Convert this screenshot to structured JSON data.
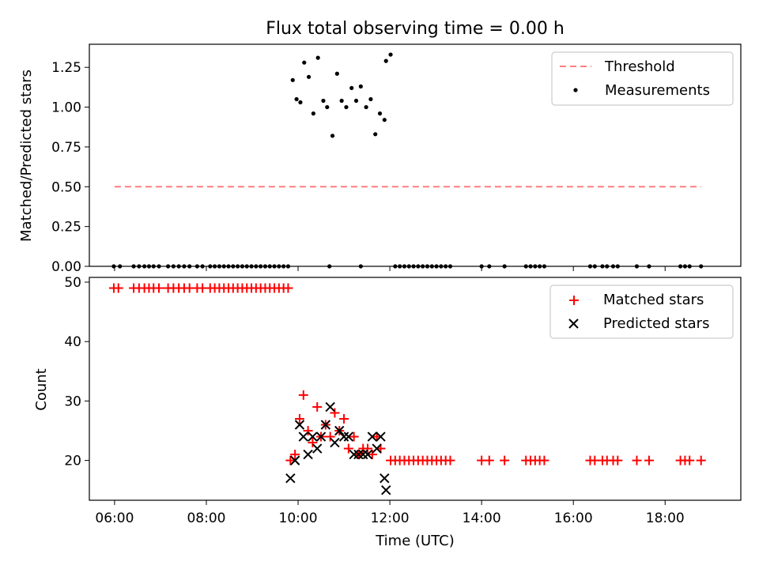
{
  "title": "Flux total observing time = 0.00 h",
  "chart_data": [
    {
      "type": "scatter",
      "ylabel": "Matched/Predicted stars",
      "xlim_hours": [
        5.45,
        19.65
      ],
      "ylim": [
        0,
        1.395
      ],
      "yticks": [
        0,
        0.25,
        0.5,
        0.75,
        1.0,
        1.25
      ],
      "ytick_labels": [
        "0.00",
        "0.25",
        "0.50",
        "0.75",
        "1.00",
        "1.25"
      ],
      "legend": "top-right",
      "series": [
        {
          "name": "Threshold",
          "kind": "dashed-line",
          "color": "#ff7f7f",
          "x": [
            "06:00",
            "18:47"
          ],
          "y": [
            0.5,
            0.5
          ]
        },
        {
          "name": "Measurements",
          "kind": "dots",
          "color": "#000000",
          "x": [
            "05:59",
            "06:07",
            "06:25",
            "06:32",
            "06:39",
            "06:45",
            "06:51",
            "06:58",
            "07:10",
            "07:17",
            "07:24",
            "07:31",
            "07:38",
            "07:48",
            "07:55",
            "08:05",
            "08:11",
            "08:17",
            "08:23",
            "08:29",
            "08:35",
            "08:41",
            "08:47",
            "08:53",
            "08:59",
            "09:05",
            "09:11",
            "09:17",
            "09:23",
            "09:29",
            "09:35",
            "09:41",
            "09:47",
            "09:53",
            "09:58",
            "10:03",
            "10:08",
            "10:14",
            "10:20",
            "10:26",
            "10:33",
            "10:38",
            "10:45",
            "10:51",
            "10:57",
            "11:03",
            "11:10",
            "11:16",
            "11:22",
            "11:29",
            "11:35",
            "11:41",
            "11:47",
            "11:53",
            "10:41",
            "11:22",
            "11:55",
            "12:01",
            "12:07",
            "12:13",
            "12:19",
            "12:25",
            "12:31",
            "12:37",
            "12:43",
            "12:49",
            "12:55",
            "13:01",
            "13:07",
            "13:13",
            "13:19",
            "14:00",
            "14:10",
            "14:30",
            "14:58",
            "15:04",
            "15:10",
            "15:16",
            "15:22",
            "16:22",
            "16:28",
            "16:38",
            "16:44",
            "16:52",
            "16:58",
            "17:23",
            "17:39",
            "18:20",
            "18:26",
            "18:32",
            "18:47"
          ],
          "y": [
            0,
            0,
            0,
            0,
            0,
            0,
            0,
            0,
            0,
            0,
            0,
            0,
            0,
            0,
            0,
            0,
            0,
            0,
            0,
            0,
            0,
            0,
            0,
            0,
            0,
            0,
            0,
            0,
            0,
            0,
            0,
            0,
            0,
            1.17,
            1.05,
            1.03,
            1.28,
            1.19,
            0.96,
            1.31,
            1.04,
            1.0,
            0.82,
            1.21,
            1.04,
            1.0,
            1.12,
            1.04,
            1.13,
            1.0,
            1.05,
            0.83,
            0.96,
            0.92,
            0,
            0,
            1.29,
            1.33,
            0,
            0,
            0,
            0,
            0,
            0,
            0,
            0,
            0,
            0,
            0,
            0,
            0,
            0,
            0,
            0,
            0,
            0,
            0,
            0,
            0,
            0,
            0,
            0,
            0,
            0,
            0,
            0,
            0,
            0,
            0,
            0,
            0
          ]
        }
      ]
    },
    {
      "type": "scatter",
      "xlabel": "Time (UTC)",
      "ylabel": "Count",
      "xlim_hours": [
        5.45,
        19.65
      ],
      "ylim": [
        13.3,
        50.8
      ],
      "yticks": [
        20,
        30,
        40,
        50
      ],
      "xticks": [
        "06:00",
        "08:00",
        "10:00",
        "12:00",
        "14:00",
        "16:00",
        "18:00"
      ],
      "legend": "top-right",
      "series": [
        {
          "name": "Matched stars",
          "marker": "+",
          "color": "#ff0000",
          "x": [
            "05:59",
            "06:05",
            "06:25",
            "06:32",
            "06:39",
            "06:45",
            "06:51",
            "06:58",
            "07:10",
            "07:17",
            "07:24",
            "07:31",
            "07:38",
            "07:48",
            "07:55",
            "08:05",
            "08:11",
            "08:17",
            "08:23",
            "08:29",
            "08:35",
            "08:41",
            "08:47",
            "08:53",
            "08:59",
            "09:05",
            "09:11",
            "09:17",
            "09:23",
            "09:29",
            "09:35",
            "09:41",
            "09:47",
            "09:50",
            "09:56",
            "10:02",
            "10:07",
            "10:13",
            "10:19",
            "10:25",
            "10:30",
            "10:36",
            "10:42",
            "10:48",
            "10:54",
            "11:00",
            "11:06",
            "11:13",
            "11:19",
            "11:25",
            "11:31",
            "11:37",
            "11:43",
            "11:48",
            "12:01",
            "12:07",
            "12:13",
            "12:19",
            "12:25",
            "12:31",
            "12:37",
            "12:43",
            "12:49",
            "12:55",
            "13:01",
            "13:07",
            "13:13",
            "13:19",
            "14:00",
            "14:10",
            "14:30",
            "14:58",
            "15:04",
            "15:10",
            "15:16",
            "15:22",
            "16:22",
            "16:28",
            "16:38",
            "16:44",
            "16:52",
            "16:58",
            "17:23",
            "17:39",
            "18:20",
            "18:26",
            "18:32",
            "18:47"
          ],
          "y": [
            49,
            49,
            49,
            49,
            49,
            49,
            49,
            49,
            49,
            49,
            49,
            49,
            49,
            49,
            49,
            49,
            49,
            49,
            49,
            49,
            49,
            49,
            49,
            49,
            49,
            49,
            49,
            49,
            49,
            49,
            49,
            49,
            49,
            20,
            21,
            27,
            31,
            25,
            23,
            29,
            24,
            26,
            24,
            28,
            25,
            27,
            22,
            24,
            21,
            22,
            22,
            21,
            24,
            22,
            20,
            20,
            20,
            20,
            20,
            20,
            20,
            20,
            20,
            20,
            20,
            20,
            20,
            20,
            20,
            20,
            20,
            20,
            20,
            20,
            20,
            20,
            20,
            20,
            20,
            20,
            20,
            20,
            20,
            20,
            20,
            20,
            20,
            20
          ]
        },
        {
          "name": "Predicted stars",
          "marker": "x",
          "color": "#000000",
          "x": [
            "09:50",
            "09:56",
            "10:02",
            "10:07",
            "10:13",
            "10:19",
            "10:25",
            "10:30",
            "10:36",
            "10:42",
            "10:48",
            "10:54",
            "11:00",
            "11:06",
            "11:13",
            "11:19",
            "11:25",
            "11:31",
            "11:37",
            "11:43",
            "11:48",
            "11:53"
          ],
          "y": [
            17,
            20,
            26,
            24,
            21,
            24,
            22,
            24,
            26,
            29,
            23,
            25,
            24,
            24,
            21,
            21,
            21,
            21,
            24,
            22,
            24,
            17
          ]
        },
        {
          "name": "",
          "marker": "x",
          "color": "#000000",
          "x": [
            "11:55"
          ],
          "y": [
            15
          ]
        }
      ]
    }
  ]
}
